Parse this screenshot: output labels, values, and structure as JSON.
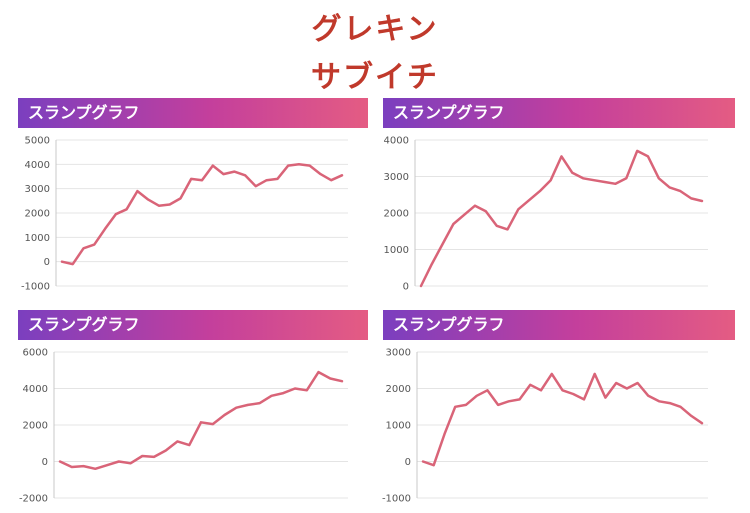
{
  "page": {
    "title_line1": "グレキン",
    "title_line2": "サブイチ"
  },
  "colors": {
    "title": "#c0392b",
    "header_gradient": [
      "#7b3fbf",
      "#c43f9c",
      "#e45c83"
    ],
    "line": "#d96478",
    "grid": "#e4e4e4",
    "axis": "#c8c8c8"
  },
  "chart_data": [
    {
      "type": "line",
      "header": "スランプグラフ",
      "yticks": [
        5000,
        4000,
        3000,
        2000,
        1000,
        0,
        -1000
      ],
      "ylim": [
        -1000,
        5000
      ],
      "values": [
        0,
        -100,
        550,
        700,
        1350,
        1950,
        2150,
        2900,
        2550,
        2300,
        2350,
        2600,
        3400,
        3350,
        3950,
        3600,
        3700,
        3550,
        3100,
        3350,
        3400,
        3950,
        4000,
        3950,
        3600,
        3350,
        3550
      ]
    },
    {
      "type": "line",
      "header": "スランプグラフ",
      "yticks": [
        4000,
        3000,
        2000,
        1000,
        0
      ],
      "ylim": [
        0,
        4000
      ],
      "values": [
        0,
        600,
        1150,
        1700,
        1950,
        2200,
        2050,
        1650,
        1550,
        2100,
        2350,
        2600,
        2900,
        3550,
        3100,
        2950,
        2900,
        2850,
        2800,
        2950,
        3700,
        3550,
        2950,
        2700,
        2600,
        2400,
        2330
      ]
    },
    {
      "type": "line",
      "header": "スランプグラフ",
      "yticks": [
        6000,
        4000,
        2000,
        0,
        -2000
      ],
      "ylim": [
        -2000,
        6000
      ],
      "values": [
        0,
        -300,
        -250,
        -400,
        -200,
        0,
        -100,
        300,
        250,
        600,
        1100,
        900,
        2150,
        2050,
        2550,
        2950,
        3100,
        3200,
        3600,
        3750,
        4000,
        3900,
        4900,
        4550,
        4400
      ]
    },
    {
      "type": "line",
      "header": "スランプグラフ",
      "yticks": [
        3000,
        2000,
        1000,
        0,
        -1000
      ],
      "ylim": [
        -1000,
        3000
      ],
      "values": [
        0,
        -100,
        750,
        1500,
        1550,
        1800,
        1950,
        1550,
        1650,
        1700,
        2100,
        1950,
        2400,
        1950,
        1850,
        1700,
        2400,
        1750,
        2150,
        2000,
        2150,
        1800,
        1650,
        1600,
        1500,
        1250,
        1050
      ]
    }
  ]
}
